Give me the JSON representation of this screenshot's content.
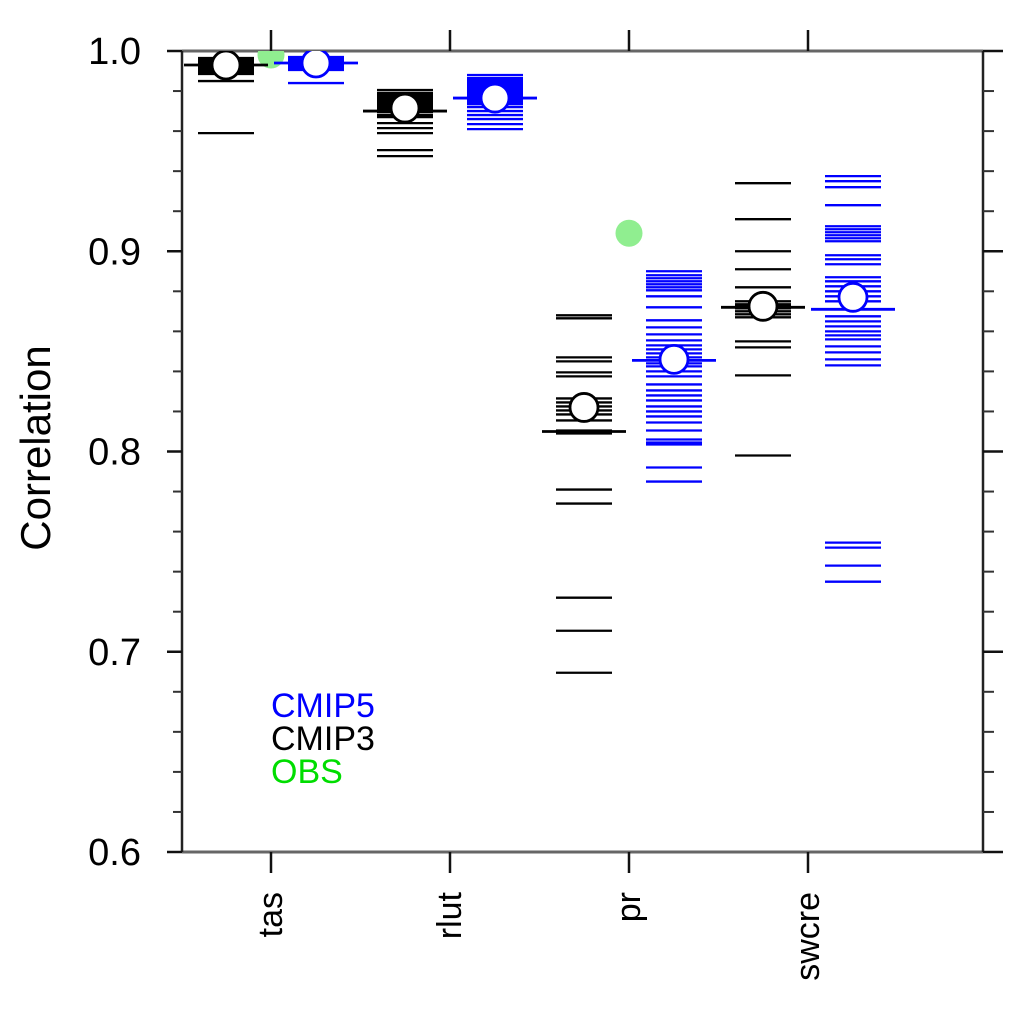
{
  "chart_data": {
    "type": "scatter",
    "title": "",
    "ylabel": "Correlation",
    "xlabel": "",
    "ylim": [
      0.6,
      1.0
    ],
    "yticks": [
      1.0,
      0.9,
      0.8,
      0.7,
      0.6
    ],
    "ytick_labels": [
      "1.0",
      "0.9",
      "0.8",
      "0.7",
      "0.6"
    ],
    "minor_tick_step": 0.02,
    "grid": false,
    "categories": [
      "tas",
      "rlut",
      "pr",
      "swcre"
    ],
    "legend_position": "inside-bottom-left",
    "legend": [
      {
        "label": "CMIP5",
        "color": "#0000ff"
      },
      {
        "label": "CMIP3",
        "color": "#000000"
      },
      {
        "label": "OBS",
        "color": "#00dd00"
      }
    ],
    "obs_marker_color": "#90ee90",
    "mean_marker": {
      "fill": "#ffffff",
      "radius": 14
    },
    "series": [
      {
        "name": "CMIP3",
        "color": "#000000",
        "side": "left",
        "groups": [
          {
            "category": "tas",
            "values": [
              0.9965,
              0.9955,
              0.9945,
              0.9935,
              0.993,
              0.9925,
              0.9915,
              0.9905,
              0.9895,
              0.9885,
              0.985,
              0.959
            ],
            "mean": 0.993,
            "ref_line": 0.993
          },
          {
            "category": "rlut",
            "values": [
              0.9805,
              0.979,
              0.978,
              0.977,
              0.976,
              0.975,
              0.974,
              0.9735,
              0.9725,
              0.9715,
              0.9705,
              0.9695,
              0.968,
              0.967,
              0.964,
              0.9615,
              0.959,
              0.9505,
              0.9475
            ],
            "mean": 0.9715,
            "ref_line": 0.97
          },
          {
            "category": "pr",
            "values": [
              0.868,
              0.8665,
              0.847,
              0.845,
              0.8395,
              0.8375,
              0.8265,
              0.8245,
              0.8225,
              0.8205,
              0.8185,
              0.8155,
              0.8105,
              0.809,
              0.781,
              0.774,
              0.727,
              0.7105,
              0.6895
            ],
            "mean": 0.822,
            "ref_line": 0.81
          },
          {
            "category": "swcre",
            "values": [
              0.934,
              0.916,
              0.9,
              0.891,
              0.882,
              0.875,
              0.8735,
              0.8725,
              0.8715,
              0.87,
              0.8685,
              0.867,
              0.855,
              0.852,
              0.838,
              0.798
            ],
            "mean": 0.8725,
            "ref_line": 0.872
          }
        ]
      },
      {
        "name": "CMIP5",
        "color": "#0000ff",
        "side": "right",
        "groups": [
          {
            "category": "tas",
            "values": [
              0.997,
              0.996,
              0.9955,
              0.995,
              0.9945,
              0.994,
              0.9935,
              0.9925,
              0.9915,
              0.9905,
              0.984
            ],
            "mean": 0.994,
            "ref_line": 0.994
          },
          {
            "category": "rlut",
            "values": [
              0.988,
              0.9865,
              0.9855,
              0.9845,
              0.9835,
              0.9825,
              0.9815,
              0.9805,
              0.9795,
              0.9785,
              0.9775,
              0.9765,
              0.9755,
              0.9745,
              0.9735,
              0.972,
              0.97,
              0.968,
              0.966,
              0.9635,
              0.961
            ],
            "mean": 0.9765,
            "ref_line": 0.9765
          },
          {
            "category": "pr",
            "values": [
              0.89,
              0.888,
              0.8865,
              0.885,
              0.8835,
              0.882,
              0.8805,
              0.8775,
              0.872,
              0.8655,
              0.862,
              0.8585,
              0.8555,
              0.853,
              0.851,
              0.849,
              0.847,
              0.8455,
              0.844,
              0.8425,
              0.84,
              0.8375,
              0.8335,
              0.8305,
              0.828,
              0.8255,
              0.8225,
              0.82,
              0.8175,
              0.8145,
              0.8105,
              0.806,
              0.8045,
              0.8035,
              0.792,
              0.785
            ],
            "mean": 0.846,
            "ref_line": 0.8455
          },
          {
            "category": "swcre",
            "values": [
              0.9375,
              0.935,
              0.932,
              0.923,
              0.9125,
              0.911,
              0.9095,
              0.908,
              0.9065,
              0.905,
              0.898,
              0.896,
              0.8935,
              0.887,
              0.885,
              0.8825,
              0.88,
              0.8775,
              0.875,
              0.871,
              0.8675,
              0.865,
              0.8625,
              0.86,
              0.858,
              0.856,
              0.8525,
              0.8495,
              0.846,
              0.843,
              0.7545,
              0.752,
              0.743,
              0.735
            ],
            "mean": 0.877,
            "ref_line": 0.871
          }
        ]
      },
      {
        "name": "OBS",
        "color": "#90ee90",
        "side": "center",
        "points": [
          {
            "category": "tas",
            "value": 0.998
          },
          {
            "category": "pr",
            "value": 0.909
          }
        ]
      }
    ]
  }
}
